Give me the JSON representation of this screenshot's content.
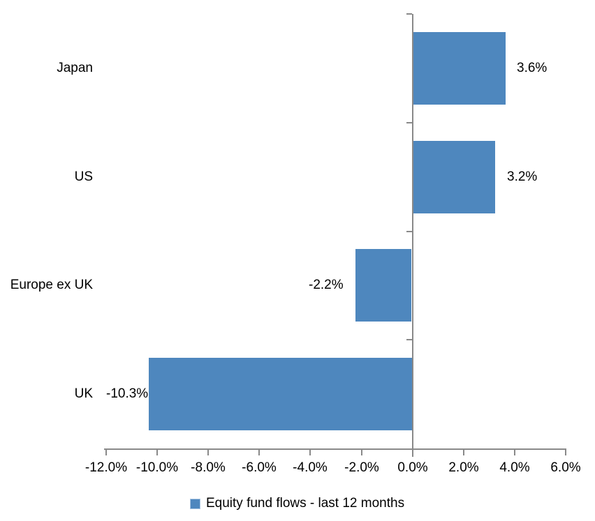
{
  "chart_data": {
    "type": "bar",
    "orientation": "horizontal",
    "title": "",
    "categories": [
      "Japan",
      "US",
      "Europe ex UK",
      "UK"
    ],
    "values": [
      3.6,
      3.2,
      -2.2,
      -10.3
    ],
    "data_labels": [
      "3.6%",
      "3.2%",
      "-2.2%",
      "-10.3%"
    ],
    "series_name": "Equity fund flows - last 12 months",
    "x_axis": {
      "min": -12,
      "max": 6,
      "step": 2,
      "tick_labels": [
        "-12.0%",
        "-10.0%",
        "-8.0%",
        "-6.0%",
        "-4.0%",
        "-2.0%",
        "0.0%",
        "2.0%",
        "4.0%",
        "6.0%"
      ]
    },
    "y_axis": {
      "tick_marks": true
    },
    "grid": false,
    "legend_position": "bottom",
    "colors": {
      "bar": "#4E87BE",
      "axis": "#898989",
      "text": "#000000",
      "background": "#FFFFFF",
      "legend_swatch": "#4E87BE",
      "legend_swatch_border": "#A7C4E2"
    }
  }
}
